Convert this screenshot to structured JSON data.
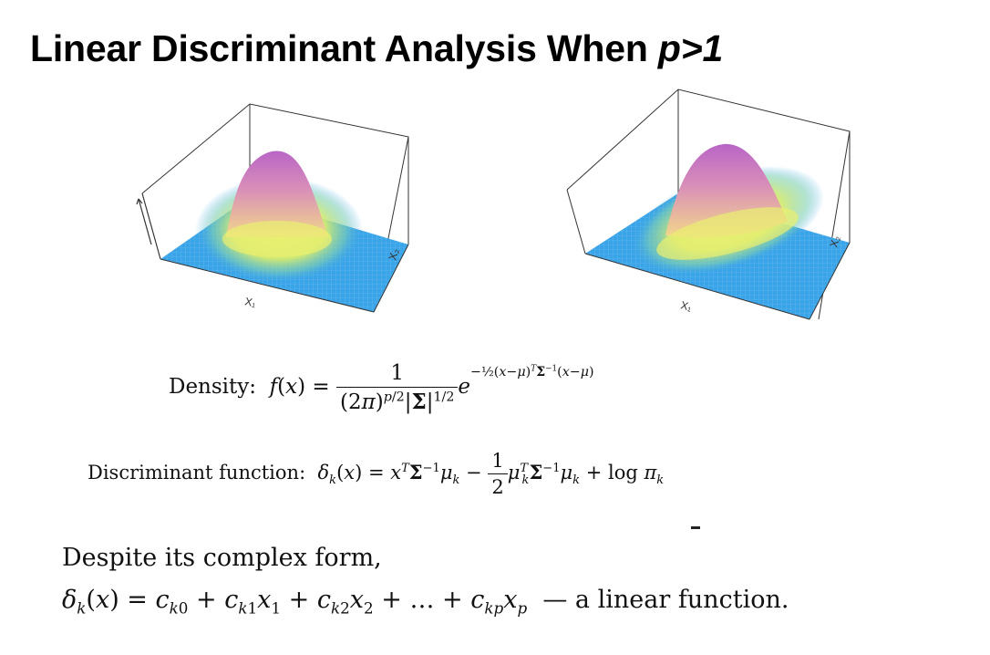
{
  "slide": {
    "title_main": "Linear Discriminant Analysis When ",
    "title_var": "p>1"
  },
  "plots": {
    "left_axis_x": "X₁",
    "left_axis_y": "X₂",
    "right_axis_x": "X₁",
    "right_axis_y": "X₂"
  },
  "equations": {
    "density_label": "Density:",
    "discriminant_label": "Discriminant function:",
    "despite_text": "Despite its complex form,",
    "linear_text": "a linear function."
  },
  "colors": {
    "floor": "#3aa4e8",
    "ridge_yellow": "#eef06a",
    "peak_pink": "#c772c8"
  }
}
